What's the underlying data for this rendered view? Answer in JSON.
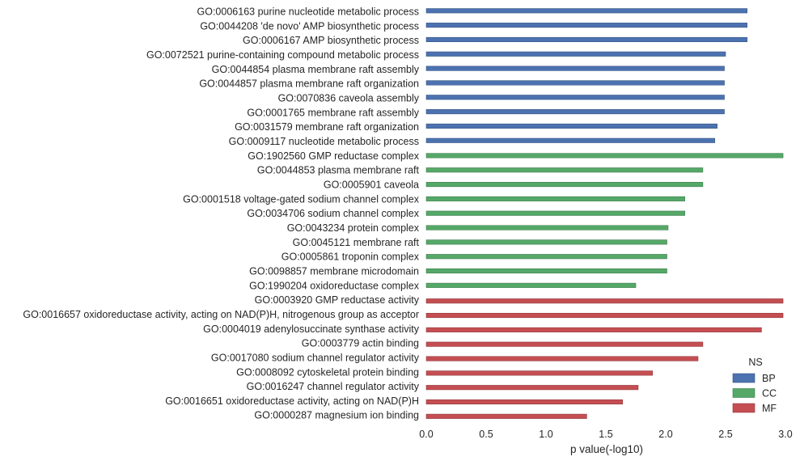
{
  "chart_data": {
    "type": "bar",
    "orientation": "horizontal",
    "title": "",
    "xlabel": "p value(-log10)",
    "ylabel": "",
    "xlim": [
      0,
      3.0
    ],
    "xticks": [
      "0.0",
      "0.5",
      "1.0",
      "1.5",
      "2.0",
      "2.5",
      "3.0"
    ],
    "grid": false,
    "legend": {
      "title": "NS",
      "placement": "bottom-right",
      "entries": [
        {
          "name": "BP",
          "color": "#4c72b0"
        },
        {
          "name": "CC",
          "color": "#55a868"
        },
        {
          "name": "MF",
          "color": "#c44e52"
        }
      ]
    },
    "categories": [
      "GO:0006163 purine nucleotide metabolic process",
      "GO:0044208 'de novo' AMP biosynthetic process",
      "GO:0006167 AMP biosynthetic process",
      "GO:0072521 purine-containing compound metabolic process",
      "GO:0044854 plasma membrane raft assembly",
      "GO:0044857 plasma membrane raft organization",
      "GO:0070836 caveola assembly",
      "GO:0001765 membrane raft assembly",
      "GO:0031579 membrane raft organization",
      "GO:0009117 nucleotide metabolic process",
      "GO:1902560 GMP reductase complex",
      "GO:0044853 plasma membrane raft",
      "GO:0005901 caveola",
      "GO:0001518 voltage-gated sodium channel complex",
      "GO:0034706 sodium channel complex",
      "GO:0043234 protein complex",
      "GO:0045121 membrane raft",
      "GO:0005861 troponin complex",
      "GO:0098857 membrane microdomain",
      "GO:1990204 oxidoreductase complex",
      "GO:0003920 GMP reductase activity",
      "GO:0016657 oxidoreductase activity, acting on NAD(P)H, nitrogenous group as acceptor",
      "GO:0004019 adenylosuccinate synthase activity",
      "GO:0003779 actin binding",
      "GO:0017080 sodium channel regulator activity",
      "GO:0008092 cytoskeletal protein binding",
      "GO:0016247 channel regulator activity",
      "GO:0016651 oxidoreductase activity, acting on NAD(P)H",
      "GO:0000287 magnesium ion binding"
    ],
    "series": [
      {
        "name": "BP",
        "color": "#4c72b0",
        "values": [
          2.68,
          2.68,
          2.68,
          2.5,
          2.49,
          2.49,
          2.49,
          2.49,
          2.43,
          2.41,
          null,
          null,
          null,
          null,
          null,
          null,
          null,
          null,
          null,
          null,
          null,
          null,
          null,
          null,
          null,
          null,
          null,
          null,
          null
        ]
      },
      {
        "name": "CC",
        "color": "#55a868",
        "values": [
          null,
          null,
          null,
          null,
          null,
          null,
          null,
          null,
          null,
          null,
          2.98,
          2.31,
          2.31,
          2.16,
          2.16,
          2.02,
          2.01,
          2.01,
          2.01,
          1.75,
          null,
          null,
          null,
          null,
          null,
          null,
          null,
          null,
          null
        ]
      },
      {
        "name": "MF",
        "color": "#c44e52",
        "values": [
          null,
          null,
          null,
          null,
          null,
          null,
          null,
          null,
          null,
          null,
          null,
          null,
          null,
          null,
          null,
          null,
          null,
          null,
          null,
          null,
          2.98,
          2.98,
          2.8,
          2.31,
          2.27,
          1.89,
          1.77,
          1.64,
          1.34
        ]
      }
    ]
  }
}
